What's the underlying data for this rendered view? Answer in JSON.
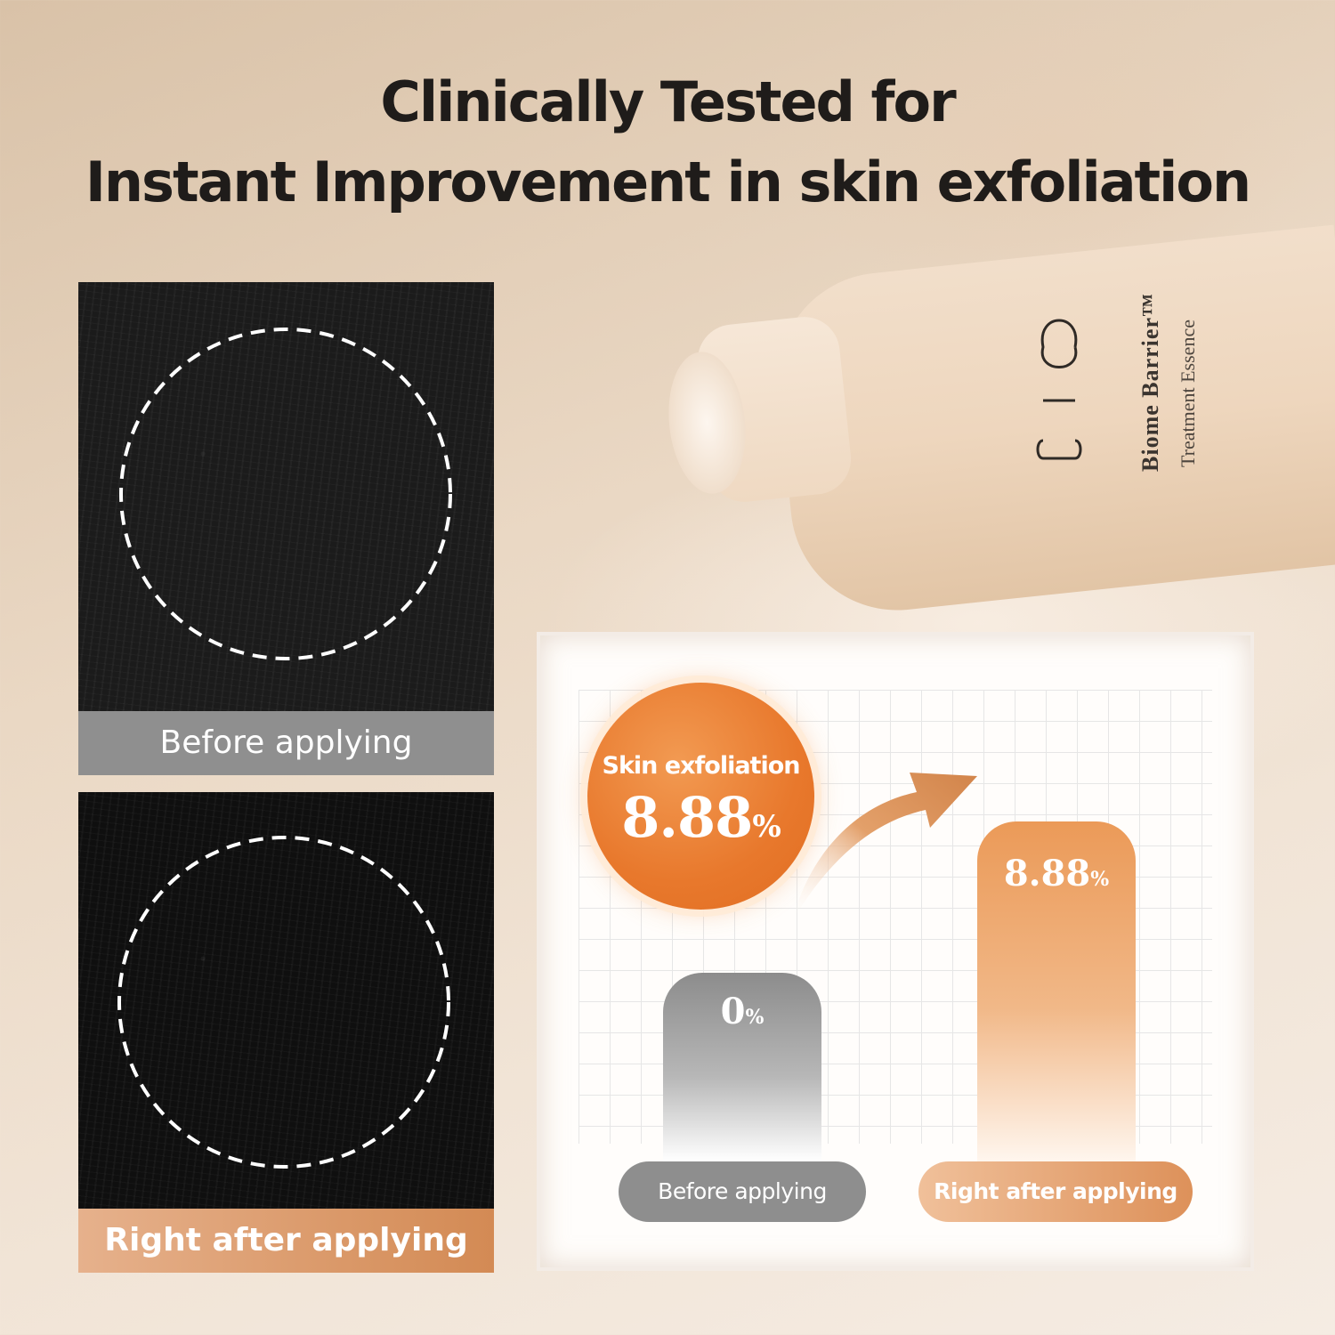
{
  "title": {
    "line1": "Clinically Tested for",
    "line2": "Instant Improvement in skin exfoliation"
  },
  "product": {
    "logo_text": "UIQ",
    "name": "Biome Barrier™",
    "subtitle": "Treatment Essence"
  },
  "photos": {
    "before_label": "Before applying",
    "after_label": "Right after applying"
  },
  "badge": {
    "label": "Skin exfoliation",
    "value": "8.88",
    "unit": "%"
  },
  "colors": {
    "accent_orange": "#e8782c",
    "before_gray": "#8f8f8f",
    "after_peach": "#d38a54"
  },
  "chart_data": {
    "type": "bar",
    "categories": [
      "Before applying",
      "Right after applying"
    ],
    "values": [
      0,
      8.88
    ],
    "value_labels": [
      "0",
      "8.88"
    ],
    "unit": "%",
    "ylim": [
      0,
      10
    ],
    "grid": true
  }
}
